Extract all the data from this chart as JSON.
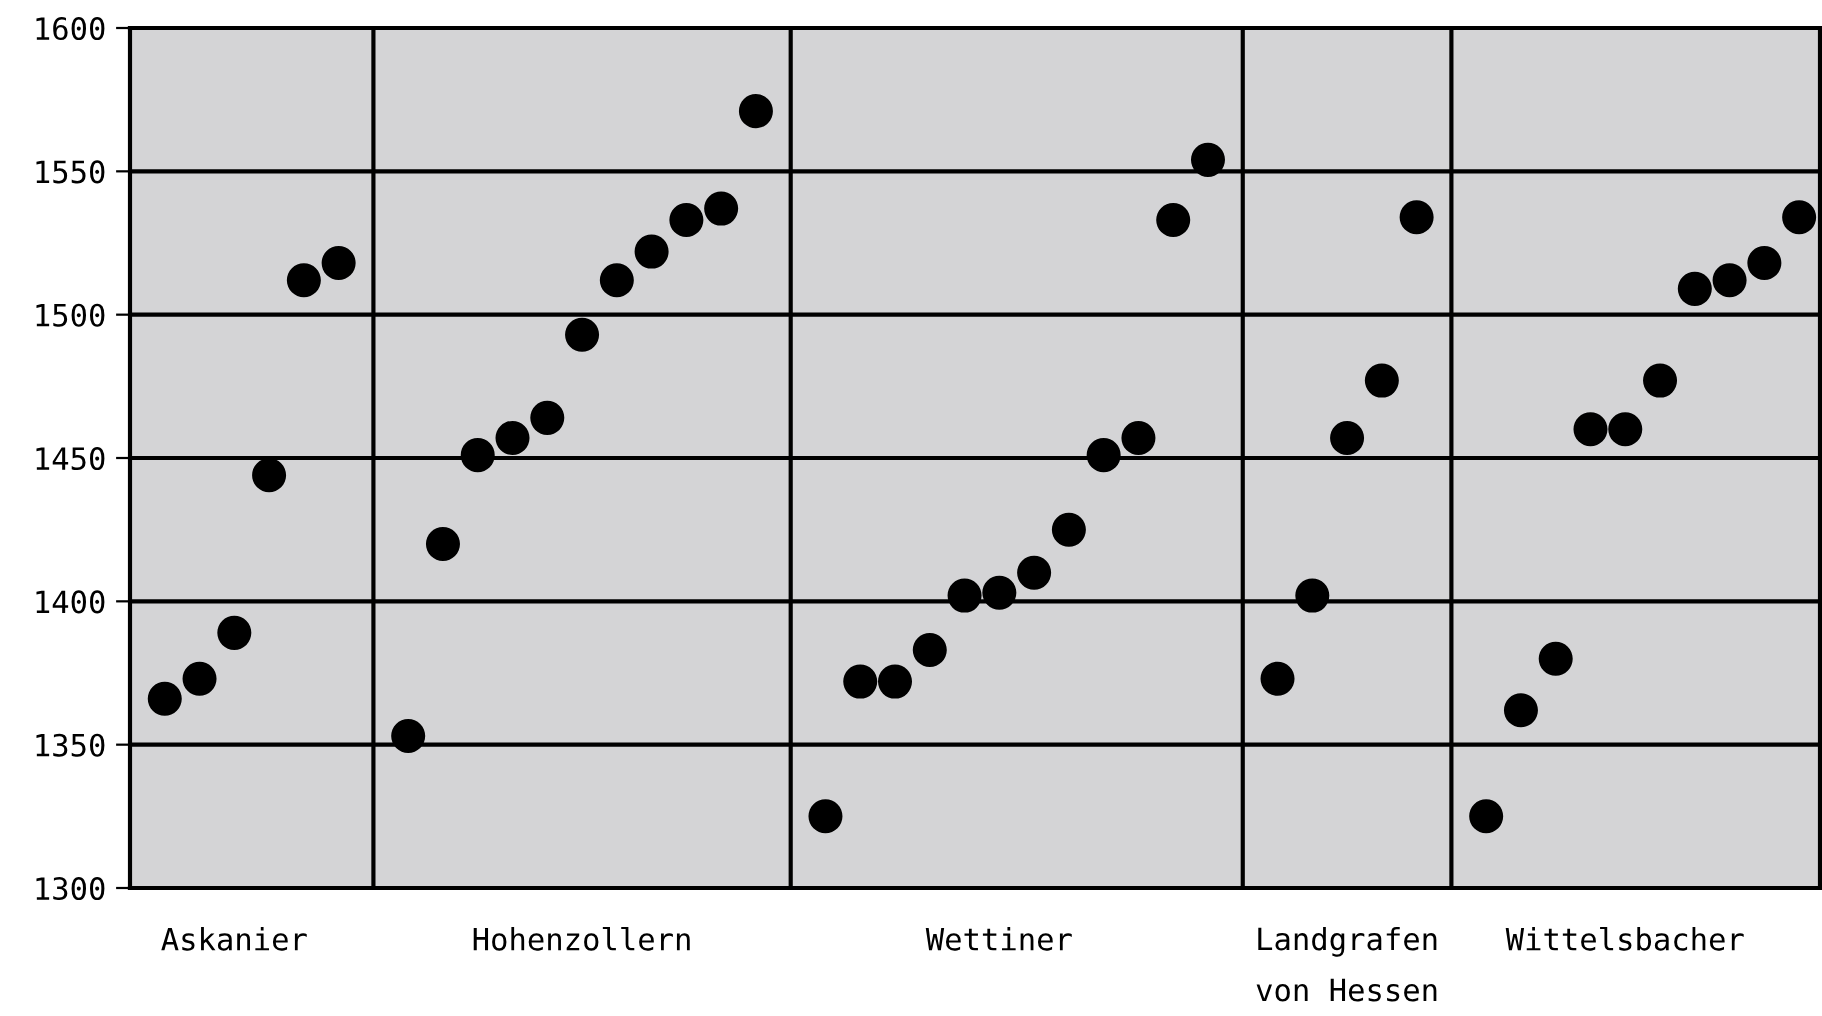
{
  "chart_data": {
    "type": "scatter",
    "categories": [
      null,
      null,
      "Askanier",
      null,
      null,
      null,
      null,
      null,
      null,
      null,
      null,
      null,
      "Hohenzollern",
      null,
      null,
      null,
      null,
      null,
      null,
      null,
      null,
      null,
      null,
      null,
      "Wettiner",
      null,
      null,
      null,
      null,
      null,
      null,
      null,
      null,
      null,
      "Landgrafen\nvon Hessen",
      null,
      null,
      null,
      null,
      null,
      null,
      null,
      "Wittelsbacher",
      null,
      null,
      null,
      null,
      null
    ],
    "series": [
      {
        "color": "#000000",
        "values": [
          1366,
          1373,
          1389,
          1444,
          1512,
          1518,
          null,
          1353,
          1420,
          1451,
          1457,
          1464,
          1493,
          1512,
          1522,
          1533,
          1537,
          1571,
          null,
          1325,
          1372,
          1372,
          1383,
          1402,
          1403,
          1410,
          1425,
          1451,
          1457,
          1533,
          1554,
          null,
          1373,
          1402,
          1457,
          1477,
          1534,
          null,
          1325,
          1362,
          1380,
          1460,
          1460,
          1477,
          1509,
          1512,
          1518,
          1534
        ]
      }
    ],
    "ylim": [
      1300,
      1600
    ],
    "yticks": [
      1300,
      1350,
      1400,
      1450,
      1500,
      1550,
      1600
    ],
    "grid": true,
    "marker": "circle"
  }
}
